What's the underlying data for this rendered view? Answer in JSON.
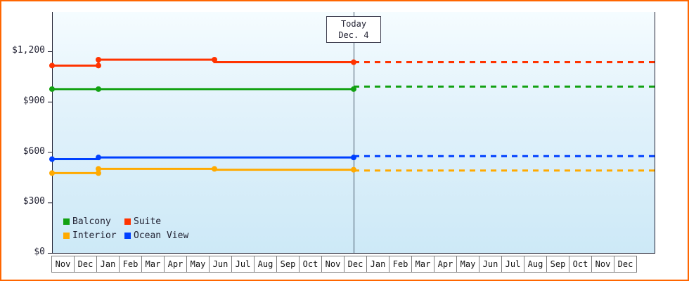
{
  "frame": {
    "border_color": "#ff6600",
    "background_color": "#ffffff",
    "plot_gradient_top": "#f5fcff",
    "plot_gradient_bottom": "#cde9f7"
  },
  "chart_data": {
    "type": "line",
    "title": "",
    "xlabel": "",
    "ylabel": "",
    "grid": false,
    "legend_position": "bottom-left-inside",
    "y_axis": {
      "tick_labels": [
        "$0",
        "$300",
        "$600",
        "$900",
        "$1,200"
      ],
      "tick_values": [
        0,
        300,
        600,
        900,
        1200
      ],
      "max_value": 1200,
      "ylim": [
        0,
        1435
      ]
    },
    "x_axis": {
      "months": [
        "Nov",
        "Dec",
        "Jan",
        "Feb",
        "Mar",
        "Apr",
        "May",
        "Jun",
        "Jul",
        "Aug",
        "Sep",
        "Oct",
        "Nov",
        "Dec",
        "Jan",
        "Feb",
        "Mar",
        "Apr",
        "May",
        "Jun",
        "Jul",
        "Aug",
        "Sep",
        "Oct",
        "Nov",
        "Dec"
      ]
    },
    "today_marker": {
      "line1": "Today",
      "line2": "Dec. 4",
      "month_index": 13
    },
    "series": [
      {
        "name": "Balcony",
        "color": "#12a112",
        "solid": [
          [
            0,
            975
          ],
          [
            13,
            975
          ]
        ],
        "markers": [
          [
            0,
            975
          ],
          [
            2,
            975
          ],
          [
            13,
            975
          ]
        ],
        "forecast": [
          [
            13,
            990
          ],
          [
            26,
            990
          ]
        ]
      },
      {
        "name": "Suite",
        "color": "#ff3300",
        "solid": [
          [
            0,
            1115
          ],
          [
            2,
            1115
          ],
          [
            2,
            1150
          ],
          [
            7,
            1150
          ],
          [
            7,
            1135
          ],
          [
            13,
            1135
          ]
        ],
        "markers": [
          [
            0,
            1115
          ],
          [
            2,
            1115
          ],
          [
            2,
            1150
          ],
          [
            7,
            1150
          ],
          [
            13,
            1135
          ]
        ],
        "forecast": [
          [
            13,
            1135
          ],
          [
            26,
            1135
          ]
        ]
      },
      {
        "name": "Interior",
        "color": "#ffaa00",
        "solid": [
          [
            0,
            475
          ],
          [
            2,
            475
          ],
          [
            2,
            500
          ],
          [
            7,
            500
          ],
          [
            7,
            495
          ],
          [
            13,
            495
          ]
        ],
        "markers": [
          [
            0,
            475
          ],
          [
            2,
            475
          ],
          [
            2,
            500
          ],
          [
            7,
            500
          ],
          [
            13,
            495
          ]
        ],
        "forecast": [
          [
            13,
            490
          ],
          [
            26,
            490
          ]
        ]
      },
      {
        "name": "Ocean View",
        "color": "#0040ff",
        "solid": [
          [
            0,
            558
          ],
          [
            2,
            558
          ],
          [
            2,
            568
          ],
          [
            13,
            568
          ]
        ],
        "markers": [
          [
            0,
            558
          ],
          [
            2,
            568
          ],
          [
            13,
            568
          ]
        ],
        "forecast": [
          [
            13,
            576
          ],
          [
            26,
            576
          ]
        ]
      }
    ],
    "legend_entries": [
      "Balcony",
      "Suite",
      "Interior",
      "Ocean View"
    ]
  }
}
